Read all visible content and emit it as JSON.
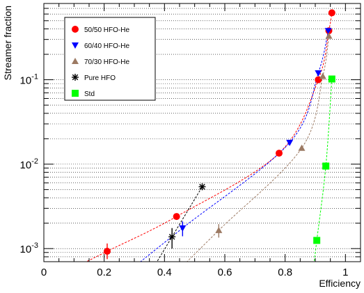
{
  "chart_data": {
    "type": "scatter",
    "xlabel": "Efficiency",
    "ylabel": "Streamer fraction",
    "xlim": [
      0,
      1.05
    ],
    "ylim": [
      0.0007,
      0.8
    ],
    "y_scale": "log",
    "grid": "horizontal dotted at log minor decades",
    "legend_position": "top-left",
    "x_ticks": [
      "0",
      "0.2",
      "0.4",
      "0.6",
      "0.8",
      "1"
    ],
    "y_ticks": [
      {
        "exp": "-3",
        "value": 0.001
      },
      {
        "exp": "-2",
        "value": 0.01
      },
      {
        "exp": "-1",
        "value": 0.1
      }
    ],
    "series": [
      {
        "name": "50/50 HFO-He",
        "color": "#ff0000",
        "marker": "circle",
        "line": "dashed",
        "points": [
          {
            "x": 0.21,
            "y": 0.00093,
            "ylo": 0.00075,
            "yhi": 0.00115
          },
          {
            "x": 0.44,
            "y": 0.0024
          },
          {
            "x": 0.78,
            "y": 0.0135
          },
          {
            "x": 0.91,
            "y": 0.1
          },
          {
            "x": 0.945,
            "y": 0.38
          },
          {
            "x": 0.955,
            "y": 0.62
          }
        ]
      },
      {
        "name": "60/40 HFO-He",
        "color": "#0000ff",
        "marker": "triangle-down",
        "line": "dashed",
        "points": [
          {
            "x": 0.46,
            "y": 0.00175,
            "ylo": 0.0014,
            "yhi": 0.0021
          },
          {
            "x": 0.815,
            "y": 0.018
          },
          {
            "x": 0.91,
            "y": 0.12
          },
          {
            "x": 0.943,
            "y": 0.38
          }
        ]
      },
      {
        "name": "70/30 HFO-He",
        "color": "#9c7a63",
        "marker": "triangle-up",
        "line": "dashed",
        "points": [
          {
            "x": 0.58,
            "y": 0.00165,
            "ylo": 0.00135,
            "yhi": 0.00195
          },
          {
            "x": 0.855,
            "y": 0.0155
          },
          {
            "x": 0.925,
            "y": 0.11
          },
          {
            "x": 0.945,
            "y": 0.33
          }
        ]
      },
      {
        "name": "Pure HFO",
        "color": "#000000",
        "marker": "star",
        "line": "dashed",
        "points": [
          {
            "x": 0.425,
            "y": 0.00138,
            "ylo": 0.001,
            "yhi": 0.00175
          },
          {
            "x": 0.525,
            "y": 0.0054
          }
        ]
      },
      {
        "name": "Std",
        "color": "#00ff00",
        "marker": "square",
        "line": "dashed",
        "points": [
          {
            "x": 0.905,
            "y": 0.00125
          },
          {
            "x": 0.935,
            "y": 0.0095
          },
          {
            "x": 0.955,
            "y": 0.102
          }
        ]
      }
    ]
  }
}
